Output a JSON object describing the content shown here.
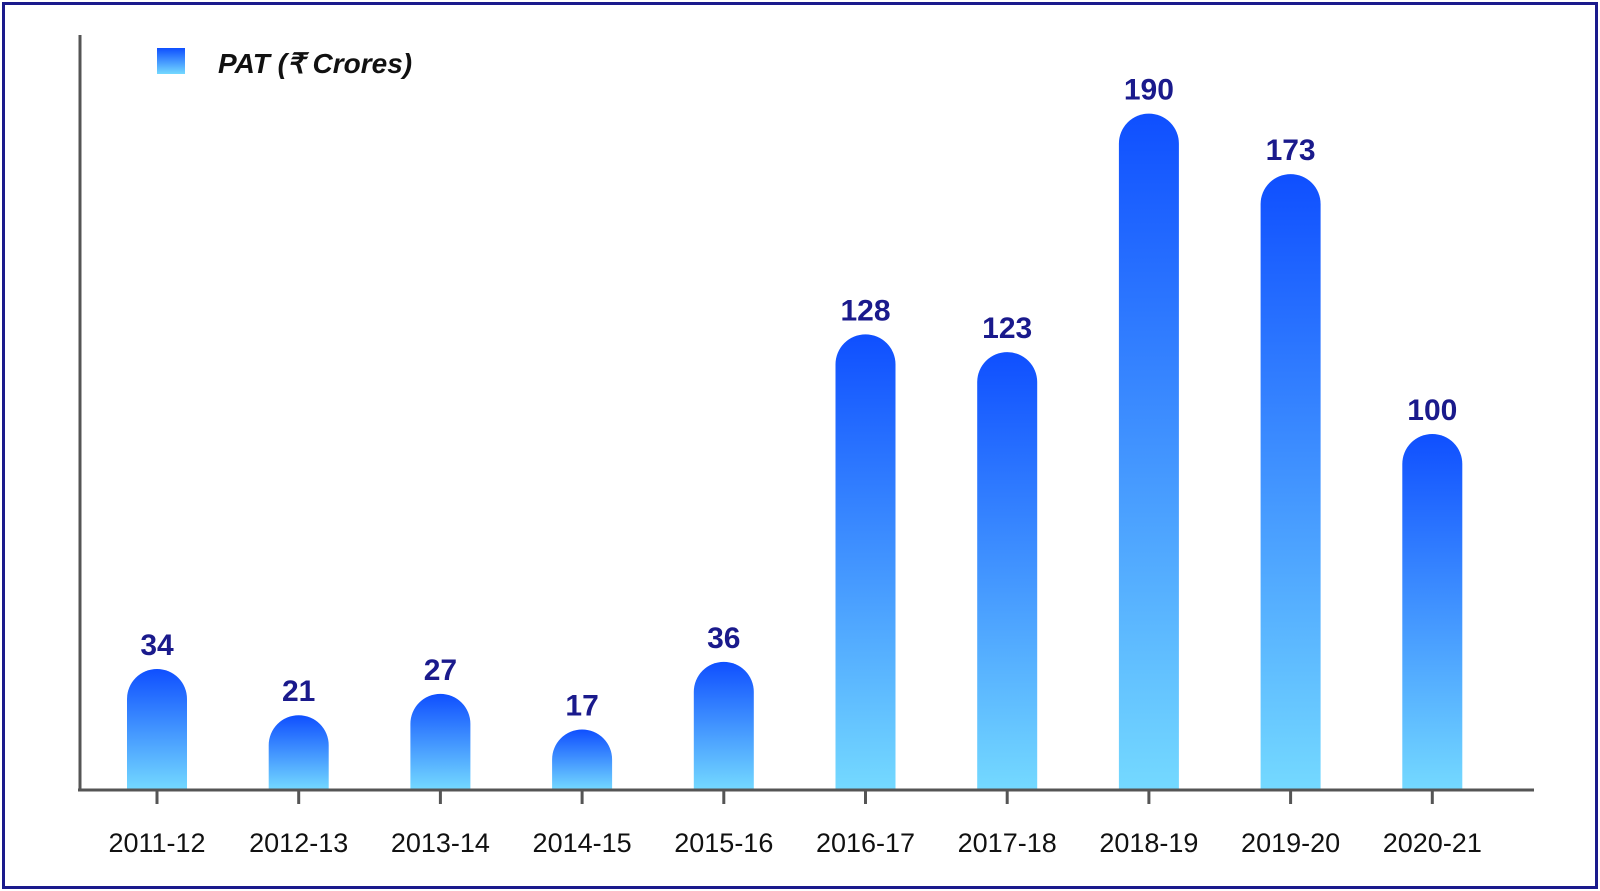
{
  "chart_data": {
    "type": "bar",
    "legend": {
      "label": "PAT (₹ Crores)",
      "placement": "top-left"
    },
    "categories": [
      "2011-12",
      "2012-13",
      "2013-14",
      "2014-15",
      "2015-16",
      "2016-17",
      "2017-18",
      "2018-19",
      "2019-20",
      "2020-21"
    ],
    "series": [
      {
        "name": "PAT (₹ Crores)",
        "values": [
          34,
          21,
          27,
          17,
          36,
          128,
          123,
          190,
          173,
          100
        ]
      }
    ],
    "ylim": [
      0,
      200
    ],
    "grid": false,
    "colors": {
      "bar_top": "#0f4fff",
      "bar_bottom": "#74d9ff",
      "value_label": "#1a1a8c",
      "border": "#1a1a8c",
      "axis": "#555555"
    }
  }
}
